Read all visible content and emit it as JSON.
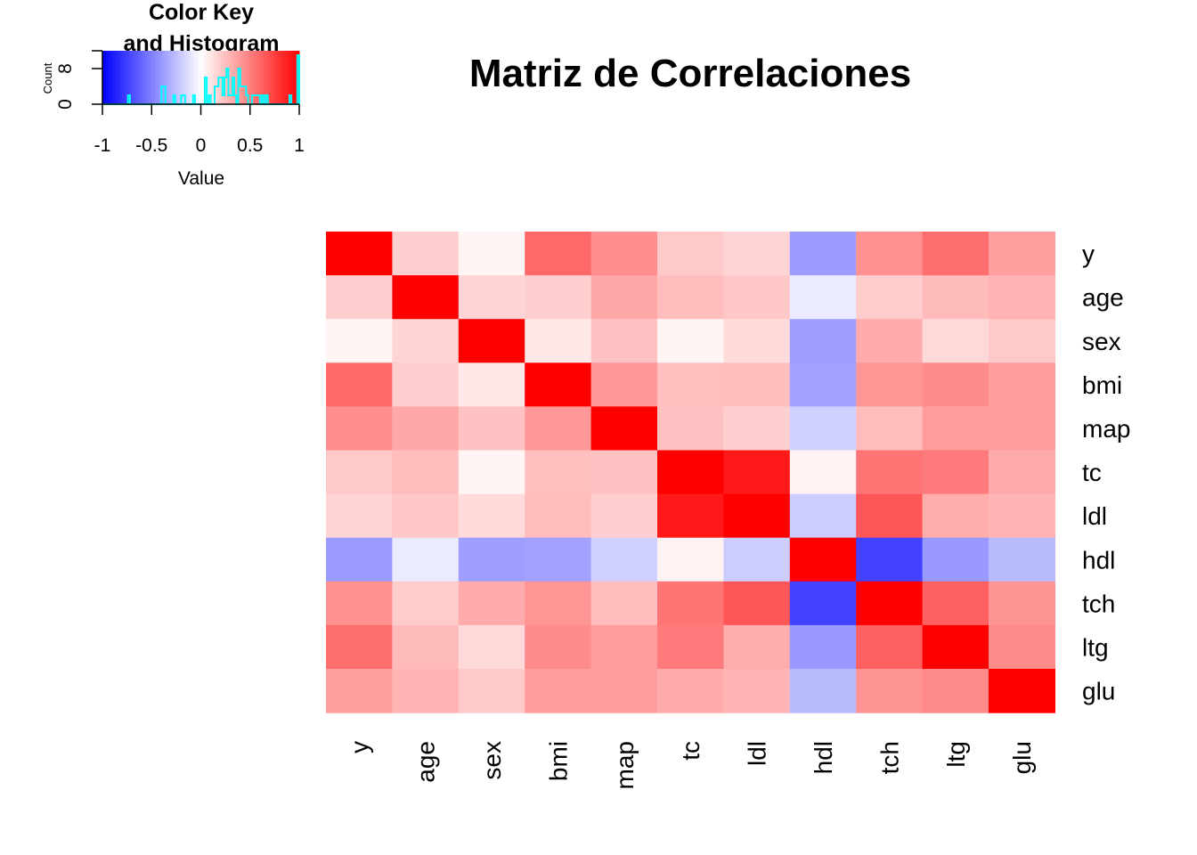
{
  "chart_data": {
    "type": "heatmap",
    "title": "Matriz de Correlaciones",
    "row_labels": [
      "y",
      "age",
      "sex",
      "bmi",
      "map",
      "tc",
      "ldl",
      "hdl",
      "tch",
      "ltg",
      "glu"
    ],
    "col_labels": [
      "y",
      "age",
      "sex",
      "bmi",
      "map",
      "tc",
      "ldl",
      "hdl",
      "tch",
      "ltg",
      "glu"
    ],
    "values": [
      [
        1.0,
        0.19,
        0.04,
        0.59,
        0.44,
        0.21,
        0.17,
        -0.39,
        0.43,
        0.57,
        0.38
      ],
      [
        0.19,
        1.0,
        0.17,
        0.19,
        0.34,
        0.26,
        0.22,
        -0.08,
        0.2,
        0.27,
        0.3
      ],
      [
        0.04,
        0.17,
        1.0,
        0.09,
        0.24,
        0.04,
        0.14,
        -0.38,
        0.33,
        0.15,
        0.21
      ],
      [
        0.59,
        0.19,
        0.09,
        1.0,
        0.4,
        0.25,
        0.26,
        -0.37,
        0.41,
        0.45,
        0.39
      ],
      [
        0.44,
        0.34,
        0.24,
        0.4,
        1.0,
        0.24,
        0.19,
        -0.18,
        0.26,
        0.39,
        0.39
      ],
      [
        0.21,
        0.26,
        0.04,
        0.25,
        0.24,
        1.0,
        0.9,
        0.05,
        0.54,
        0.52,
        0.33
      ],
      [
        0.17,
        0.22,
        0.14,
        0.26,
        0.19,
        0.9,
        1.0,
        -0.2,
        0.66,
        0.32,
        0.29
      ],
      [
        -0.39,
        -0.08,
        -0.38,
        -0.37,
        -0.18,
        0.05,
        -0.2,
        1.0,
        -0.74,
        -0.4,
        -0.27
      ],
      [
        0.43,
        0.2,
        0.33,
        0.41,
        0.26,
        0.54,
        0.66,
        -0.74,
        1.0,
        0.62,
        0.42
      ],
      [
        0.57,
        0.27,
        0.15,
        0.45,
        0.39,
        0.52,
        0.32,
        -0.4,
        0.62,
        1.0,
        0.46
      ],
      [
        0.38,
        0.3,
        0.21,
        0.39,
        0.39,
        0.33,
        0.29,
        -0.27,
        0.42,
        0.46,
        1.0
      ]
    ],
    "color_scale": {
      "min": -1,
      "mid": 0,
      "max": 1,
      "low": "#0000ff",
      "midcolor": "#ffffff",
      "high": "#ff0000"
    },
    "color_key": {
      "title_line1": "Color Key",
      "title_line2": "and Histogram",
      "xlabel": "Value",
      "ylabel": "Count",
      "x_ticks": [
        "-1",
        "-0.5",
        "0",
        "0.5",
        "1"
      ],
      "y_ticks": [
        "0",
        "8"
      ],
      "histogram_color": "#00ffff"
    }
  }
}
